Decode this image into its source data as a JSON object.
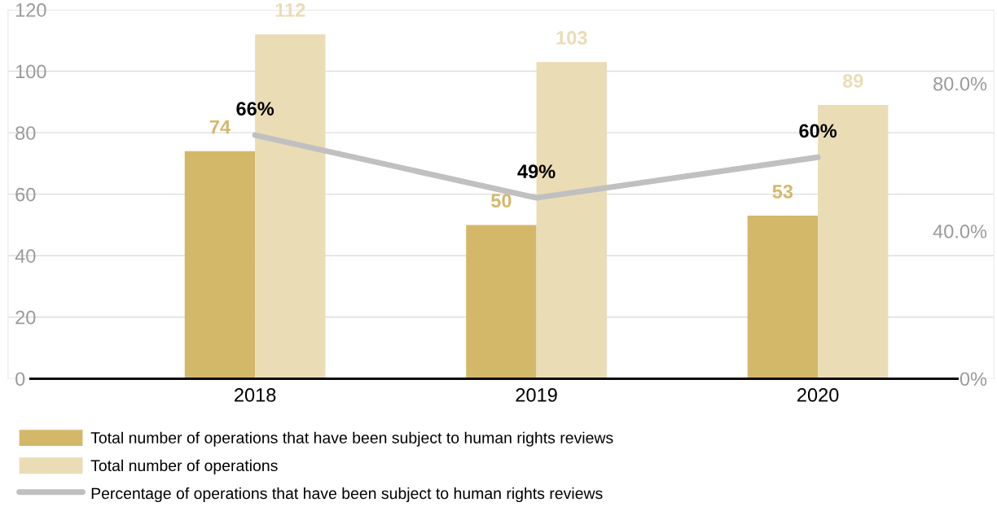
{
  "chart_data": {
    "type": "bar",
    "categories": [
      "2018",
      "2019",
      "2020"
    ],
    "series": [
      {
        "name": "Total number of operations that have been subject to human rights reviews",
        "color": "#d4b86a",
        "values": [
          74,
          50,
          53
        ]
      },
      {
        "name": "Total number of operations",
        "color": "#eadcb5",
        "values": [
          112,
          103,
          89
        ]
      },
      {
        "name": "Percentage of operations that have been subject to human rights reviews",
        "type": "line",
        "axis": "y2",
        "color": "#c0c0c0",
        "values": [
          66,
          49,
          60
        ],
        "value_labels": [
          "66%",
          "49%",
          "60%"
        ]
      }
    ],
    "data_labels": true,
    "ylim": [
      0,
      120
    ],
    "yticks": [
      0,
      20,
      40,
      60,
      80,
      100,
      120
    ],
    "y2lim": [
      0,
      100
    ],
    "y2ticks": [
      {
        "value": 0,
        "label": "0%"
      },
      {
        "value": 40,
        "label": "40.0%"
      },
      {
        "value": 80,
        "label": "80.0%"
      }
    ],
    "grid": "y",
    "legend": "bottom"
  }
}
